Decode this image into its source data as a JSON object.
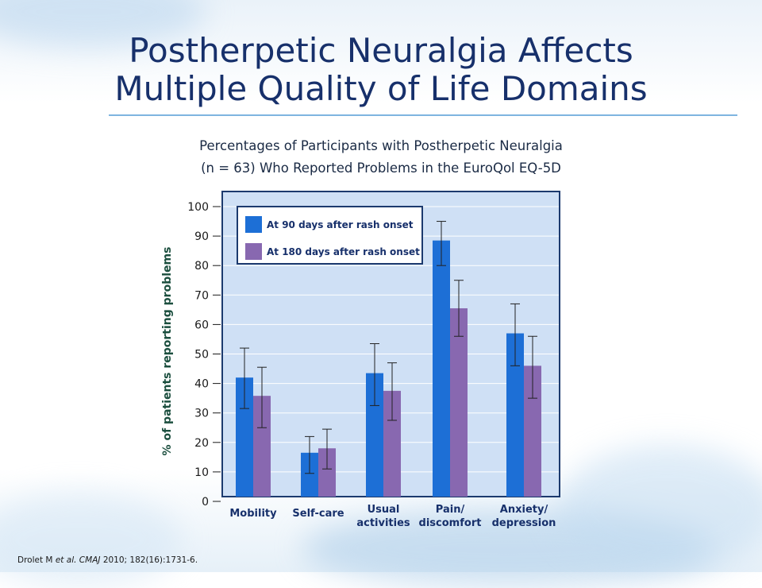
{
  "slide": {
    "title_line1": "Postherpetic Neuralgia Affects",
    "title_line2": "Multiple Quality of Life Domains",
    "subtitle_line1": "Percentages of Participants with Postherpetic Neuralgia",
    "subtitle_line2": "(n = 63) Who Reported Problems in the EuroQol EQ-5D",
    "citation_author": "Drolet M",
    "citation_etal": "et al.",
    "citation_journal": "CMAJ",
    "citation_rest": "2010; 182(16):1731-6."
  },
  "colors": {
    "title": "#17306b",
    "plot_bg": "#cfe0f5",
    "plot_border": "#1c3a6e",
    "series_90": "#1d6fd6",
    "series_180": "#8868b0",
    "axis_label": "#1c4f3f"
  },
  "chart_data": {
    "type": "bar",
    "categories": [
      [
        "Mobility"
      ],
      [
        "Self-care"
      ],
      [
        "Usual",
        "activities"
      ],
      [
        "Pain/",
        "discomfort"
      ],
      [
        "Anxiety/",
        "depression"
      ]
    ],
    "series": [
      {
        "name": "At 90 days after rash onset",
        "values": [
          42,
          16.5,
          43.5,
          88.5,
          57
        ],
        "error_low": [
          31.5,
          9.5,
          32.5,
          80,
          46
        ],
        "error_high": [
          52,
          22,
          53.5,
          95,
          67
        ]
      },
      {
        "name": "At 180 days after rash onset",
        "values": [
          35.8,
          18,
          37.5,
          65.5,
          46
        ],
        "error_low": [
          25,
          11,
          27.5,
          56,
          35
        ],
        "error_high": [
          45.5,
          24.5,
          47,
          75,
          56
        ]
      }
    ],
    "ylabel": "% of patients reporting problems",
    "xlabel": "",
    "ylim": [
      0,
      100
    ],
    "yticks": [
      0,
      10,
      20,
      30,
      40,
      50,
      60,
      70,
      80,
      90,
      100
    ],
    "grid": true,
    "legend": "top-left"
  }
}
